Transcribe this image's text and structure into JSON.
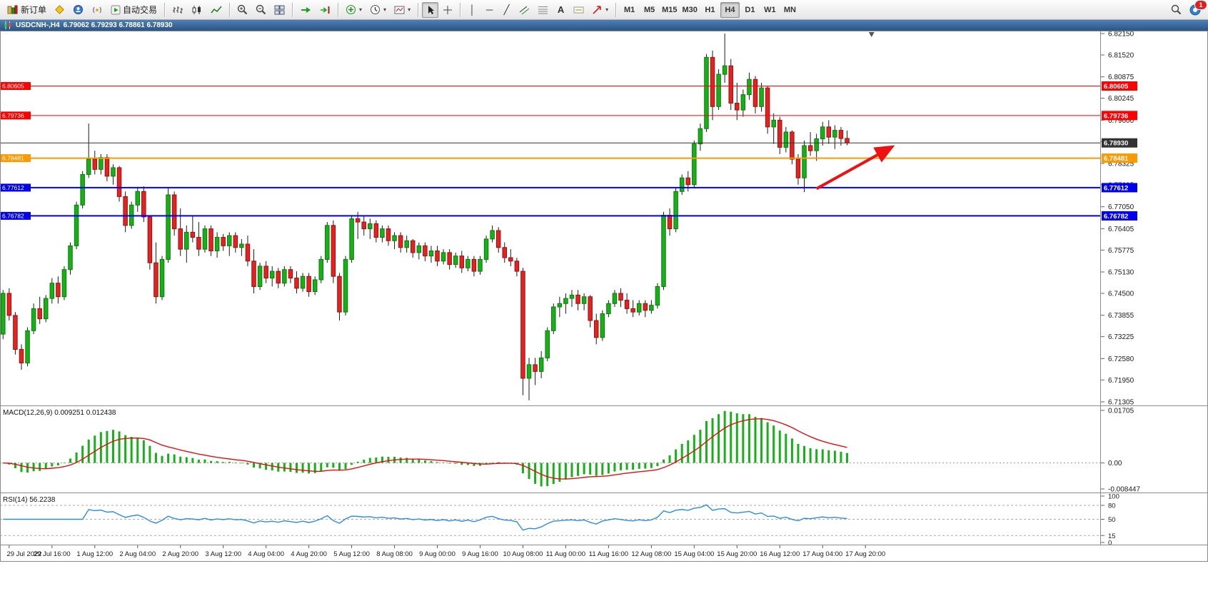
{
  "toolbar": {
    "new_order_label": "新订单",
    "autotrading_label": "自动交易",
    "timeframes": [
      "M1",
      "M5",
      "M15",
      "M30",
      "H1",
      "H4",
      "D1",
      "W1",
      "MN"
    ],
    "active_timeframe": "H4",
    "notification_count": "1",
    "tool_glyphs": {
      "vertical_line": "│",
      "horizontal_line": "─",
      "trendline": "╱",
      "text_tool": "A"
    }
  },
  "chart": {
    "title": "USDCNH-,H4",
    "ohlc_text": "6.79062 6.79293 6.78861 6.78930"
  },
  "indicators": {
    "macd": {
      "label": "MACD(12,26,9) 0.009251 0.012438",
      "axis": [
        "0.01705",
        "0.00",
        "-0.008447"
      ]
    },
    "rsi": {
      "label": "RSI(14) 56.2238",
      "axis": [
        "100",
        "80",
        "50",
        "15",
        "0"
      ],
      "dashed_levels": [
        80,
        50,
        15
      ]
    }
  },
  "chart_data": {
    "type": "candlestick",
    "symbol": "USDCNH",
    "timeframe": "H4",
    "price_min": 6.71305,
    "price_max": 6.8215,
    "total_slots": 180,
    "price_axis_ticks": [
      "6.82150",
      "6.81520",
      "6.80875",
      "6.80245",
      "6.79600",
      "6.78970",
      "6.78325",
      "6.77695",
      "6.77050",
      "6.76405",
      "6.75775",
      "6.75130",
      "6.74500",
      "6.73855",
      "6.73225",
      "6.72580",
      "6.71950",
      "6.71305"
    ],
    "time_labels": [
      {
        "slot": 1,
        "text": "29 Jul 2022"
      },
      {
        "slot": 8,
        "text": "29 Jul 16:00"
      },
      {
        "slot": 15,
        "text": "1 Aug 12:00"
      },
      {
        "slot": 22,
        "text": "2 Aug 04:00"
      },
      {
        "slot": 29,
        "text": "2 Aug 20:00"
      },
      {
        "slot": 36,
        "text": "3 Aug 12:00"
      },
      {
        "slot": 43,
        "text": "4 Aug 04:00"
      },
      {
        "slot": 50,
        "text": "4 Aug 20:00"
      },
      {
        "slot": 57,
        "text": "5 Aug 12:00"
      },
      {
        "slot": 64,
        "text": "8 Aug 08:00"
      },
      {
        "slot": 71,
        "text": "9 Aug 00:00"
      },
      {
        "slot": 78,
        "text": "9 Aug 16:00"
      },
      {
        "slot": 85,
        "text": "10 Aug 08:00"
      },
      {
        "slot": 92,
        "text": "11 Aug 00:00"
      },
      {
        "slot": 99,
        "text": "11 Aug 16:00"
      },
      {
        "slot": 106,
        "text": "12 Aug 08:00"
      },
      {
        "slot": 113,
        "text": "15 Aug 04:00"
      },
      {
        "slot": 120,
        "text": "15 Aug 20:00"
      },
      {
        "slot": 127,
        "text": "16 Aug 12:00"
      },
      {
        "slot": 134,
        "text": "17 Aug 04:00"
      },
      {
        "slot": 141,
        "text": "17 Aug 20:00"
      }
    ],
    "hlines": [
      {
        "price": 6.80605,
        "label": "6.80605",
        "color": "#FF0000",
        "width": 1,
        "left_tag": true
      },
      {
        "price": 6.79736,
        "label": "6.79736",
        "color": "#FF0000",
        "width": 1,
        "left_tag": true
      },
      {
        "price": 6.7893,
        "label": "6.78930",
        "color": "#333333",
        "width": 1,
        "left_tag": false
      },
      {
        "price": 6.78481,
        "label": "6.78481",
        "color": "#FF9900",
        "width": 2,
        "left_tag": true
      },
      {
        "price": 6.77612,
        "label": "6.77612",
        "color": "#0000EE",
        "width": 2,
        "left_tag": true
      },
      {
        "price": 6.76782,
        "label": "6.76782",
        "color": "#0000EE",
        "width": 2,
        "left_tag": true
      }
    ],
    "arrow": {
      "from_slot": 133,
      "from_price": 6.7758,
      "to_slot": 145,
      "to_price": 6.7878,
      "color": "#EE1111"
    },
    "colors": {
      "bull": "#18B018",
      "bull_border": "#0A7A0A",
      "bear": "#E32222",
      "bear_border": "#9A1010",
      "wick": "#1A1A1A",
      "macd_hist": "#18B018",
      "macd_signal": "#E01010",
      "rsi_line": "#2E8BDF"
    },
    "candles": [
      [
        6.733,
        6.746,
        6.7315,
        6.745
      ],
      [
        6.745,
        6.7465,
        6.737,
        6.7385
      ],
      [
        6.7385,
        6.7395,
        6.727,
        6.7285
      ],
      [
        6.7285,
        6.73,
        6.7225,
        6.7245
      ],
      [
        6.7245,
        6.735,
        6.7235,
        6.734
      ],
      [
        6.734,
        6.742,
        6.733,
        6.7405
      ],
      [
        6.7405,
        6.744,
        6.736,
        6.7375
      ],
      [
        6.7375,
        6.7445,
        6.7365,
        6.7435
      ],
      [
        6.7435,
        6.7495,
        6.742,
        6.748
      ],
      [
        6.748,
        6.75,
        6.742,
        6.744
      ],
      [
        6.744,
        6.753,
        6.743,
        6.752
      ],
      [
        6.752,
        6.76,
        6.7505,
        6.759
      ],
      [
        6.759,
        6.772,
        6.758,
        6.771
      ],
      [
        6.771,
        6.781,
        6.77,
        6.78
      ],
      [
        6.78,
        6.795,
        6.779,
        6.7845
      ],
      [
        6.7845,
        6.787,
        6.78,
        6.7815
      ],
      [
        6.7815,
        6.786,
        6.78,
        6.785
      ],
      [
        6.785,
        6.786,
        6.778,
        6.7795
      ],
      [
        6.7795,
        6.783,
        6.777,
        6.782
      ],
      [
        6.782,
        6.7825,
        6.772,
        6.7735
      ],
      [
        6.7735,
        6.775,
        6.763,
        6.765
      ],
      [
        6.765,
        6.772,
        6.764,
        6.771
      ],
      [
        6.771,
        6.776,
        6.769,
        6.775
      ],
      [
        6.775,
        6.7765,
        6.766,
        6.7675
      ],
      [
        6.7675,
        6.768,
        6.752,
        6.754
      ],
      [
        6.754,
        6.76,
        6.742,
        6.744
      ],
      [
        6.744,
        6.756,
        6.743,
        6.755
      ],
      [
        6.755,
        6.776,
        6.754,
        6.774
      ],
      [
        6.774,
        6.775,
        6.762,
        6.764
      ],
      [
        6.764,
        6.77,
        6.756,
        6.758
      ],
      [
        6.758,
        6.765,
        6.754,
        6.763
      ],
      [
        6.763,
        6.768,
        6.76,
        6.7615
      ],
      [
        6.7615,
        6.766,
        6.756,
        6.758
      ],
      [
        6.758,
        6.765,
        6.757,
        6.764
      ],
      [
        6.764,
        6.765,
        6.756,
        6.7575
      ],
      [
        6.7575,
        6.763,
        6.7555,
        6.7615
      ],
      [
        6.7615,
        6.7625,
        6.7575,
        6.759
      ],
      [
        6.759,
        6.763,
        6.756,
        6.762
      ],
      [
        6.762,
        6.763,
        6.757,
        6.7585
      ],
      [
        6.7585,
        6.761,
        6.756,
        6.7595
      ],
      [
        6.7595,
        6.762,
        6.753,
        6.7545
      ],
      [
        6.7545,
        6.758,
        6.745,
        6.747
      ],
      [
        6.747,
        6.754,
        6.746,
        6.753
      ],
      [
        6.753,
        6.7545,
        6.748,
        6.7495
      ],
      [
        6.7495,
        6.753,
        6.747,
        6.7515
      ],
      [
        6.7515,
        6.7525,
        6.7465,
        6.748
      ],
      [
        6.748,
        6.753,
        6.747,
        6.752
      ],
      [
        6.752,
        6.753,
        6.748,
        6.7495
      ],
      [
        6.7495,
        6.7515,
        6.745,
        6.7465
      ],
      [
        6.7465,
        6.751,
        6.7455,
        6.75
      ],
      [
        6.75,
        6.751,
        6.744,
        6.7455
      ],
      [
        6.7455,
        6.75,
        6.7445,
        6.749
      ],
      [
        6.749,
        6.756,
        6.748,
        6.755
      ],
      [
        6.755,
        6.766,
        6.754,
        6.765
      ],
      [
        6.765,
        6.7665,
        6.748,
        6.75
      ],
      [
        6.75,
        6.751,
        6.737,
        6.7395
      ],
      [
        6.7395,
        6.756,
        6.7385,
        6.755
      ],
      [
        6.755,
        6.768,
        6.754,
        6.767
      ],
      [
        6.767,
        6.769,
        6.761,
        6.766
      ],
      [
        6.766,
        6.768,
        6.762,
        6.764
      ],
      [
        6.764,
        6.767,
        6.761,
        6.7655
      ],
      [
        6.7655,
        6.7665,
        6.76,
        6.7615
      ],
      [
        6.7615,
        6.765,
        6.76,
        6.764
      ],
      [
        6.764,
        6.765,
        6.759,
        6.7605
      ],
      [
        6.7605,
        6.763,
        6.758,
        6.762
      ],
      [
        6.762,
        6.763,
        6.757,
        6.7585
      ],
      [
        6.7585,
        6.762,
        6.757,
        6.7605
      ],
      [
        6.7605,
        6.761,
        6.7555,
        6.757
      ],
      [
        6.757,
        6.76,
        6.755,
        6.759
      ],
      [
        6.759,
        6.76,
        6.7545,
        6.756
      ],
      [
        6.756,
        6.759,
        6.754,
        6.7575
      ],
      [
        6.7575,
        6.759,
        6.753,
        6.7545
      ],
      [
        6.7545,
        6.758,
        6.7535,
        6.757
      ],
      [
        6.757,
        6.758,
        6.752,
        6.7535
      ],
      [
        6.7535,
        6.757,
        6.7525,
        6.756
      ],
      [
        6.756,
        6.7575,
        6.751,
        6.7525
      ],
      [
        6.7525,
        6.756,
        6.7515,
        6.755
      ],
      [
        6.755,
        6.756,
        6.75,
        6.7515
      ],
      [
        6.7515,
        6.756,
        6.7505,
        6.755
      ],
      [
        6.755,
        6.762,
        6.754,
        6.761
      ],
      [
        6.761,
        6.765,
        6.76,
        6.7635
      ],
      [
        6.7635,
        6.7645,
        6.757,
        6.7585
      ],
      [
        6.7585,
        6.76,
        6.754,
        6.7555
      ],
      [
        6.7555,
        6.758,
        6.753,
        6.7545
      ],
      [
        6.7545,
        6.7555,
        6.75,
        6.7515
      ],
      [
        6.7515,
        6.7525,
        6.715,
        6.72
      ],
      [
        6.72,
        6.726,
        6.7135,
        6.724
      ],
      [
        6.724,
        6.726,
        6.718,
        6.722
      ],
      [
        6.722,
        6.728,
        6.72,
        6.726
      ],
      [
        6.726,
        6.735,
        6.725,
        6.734
      ],
      [
        6.734,
        6.742,
        6.733,
        6.741
      ],
      [
        6.741,
        6.744,
        6.738,
        6.742
      ],
      [
        6.742,
        6.745,
        6.739,
        6.7435
      ],
      [
        6.7435,
        6.746,
        6.741,
        6.7445
      ],
      [
        6.7445,
        6.746,
        6.74,
        6.742
      ],
      [
        6.742,
        6.745,
        6.74,
        6.744
      ],
      [
        6.744,
        6.7445,
        6.735,
        6.737
      ],
      [
        6.737,
        6.739,
        6.73,
        6.732
      ],
      [
        6.732,
        6.74,
        6.731,
        6.739
      ],
      [
        6.739,
        6.743,
        6.738,
        6.742
      ],
      [
        6.742,
        6.746,
        6.741,
        6.745
      ],
      [
        6.745,
        6.7465,
        6.741,
        6.743
      ],
      [
        6.743,
        6.745,
        6.739,
        6.7405
      ],
      [
        6.7405,
        6.743,
        6.738,
        6.7395
      ],
      [
        6.7395,
        6.743,
        6.7385,
        6.742
      ],
      [
        6.742,
        6.743,
        6.738,
        6.74
      ],
      [
        6.74,
        6.743,
        6.739,
        6.7415
      ],
      [
        6.7415,
        6.748,
        6.7405,
        6.747
      ],
      [
        6.747,
        6.769,
        6.746,
        6.768
      ],
      [
        6.768,
        6.77,
        6.762,
        6.764
      ],
      [
        6.764,
        6.776,
        6.763,
        6.775
      ],
      [
        6.775,
        6.78,
        6.774,
        6.779
      ],
      [
        6.779,
        6.781,
        6.775,
        6.777
      ],
      [
        6.777,
        6.79,
        6.776,
        6.789
      ],
      [
        6.789,
        6.795,
        6.787,
        6.7935
      ],
      [
        6.7935,
        6.8155,
        6.7925,
        6.8145
      ],
      [
        6.8145,
        6.8165,
        6.796,
        6.8
      ],
      [
        6.8,
        6.811,
        6.799,
        6.8095
      ],
      [
        6.8095,
        6.8215,
        6.807,
        6.812
      ],
      [
        6.812,
        6.814,
        6.799,
        6.801
      ],
      [
        6.801,
        6.807,
        6.796,
        6.799
      ],
      [
        6.799,
        6.805,
        6.797,
        6.8035
      ],
      [
        6.8035,
        6.81,
        6.802,
        6.808
      ],
      [
        6.808,
        6.809,
        6.798,
        6.8
      ],
      [
        6.8,
        6.807,
        6.7985,
        6.8055
      ],
      [
        6.8055,
        6.806,
        6.792,
        6.794
      ],
      [
        6.794,
        6.798,
        6.789,
        6.796
      ],
      [
        6.796,
        6.797,
        6.786,
        6.788
      ],
      [
        6.788,
        6.794,
        6.7865,
        6.7925
      ],
      [
        6.7925,
        6.793,
        6.783,
        6.7845
      ],
      [
        6.7845,
        6.786,
        6.777,
        6.779
      ],
      [
        6.779,
        6.79,
        6.7748,
        6.7885
      ],
      [
        6.7885,
        6.7925,
        6.7855,
        6.787
      ],
      [
        6.787,
        6.792,
        6.784,
        6.7905
      ],
      [
        6.7905,
        6.7955,
        6.7885,
        6.794
      ],
      [
        6.794,
        6.796,
        6.789,
        6.791
      ],
      [
        6.791,
        6.7945,
        6.7875,
        6.793
      ],
      [
        6.793,
        6.794,
        6.7885,
        6.7906
      ],
      [
        6.79062,
        6.79293,
        6.78861,
        6.7893
      ]
    ]
  }
}
